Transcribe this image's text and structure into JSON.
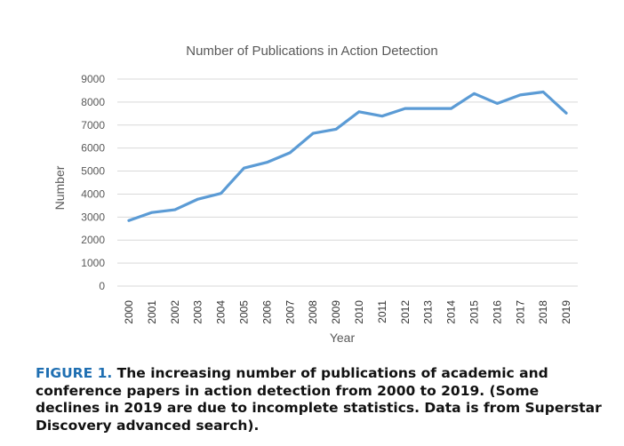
{
  "chart_data": {
    "type": "line",
    "title": "Number of Publications in Action Detection",
    "xlabel": "Year",
    "ylabel": "Number",
    "categories": [
      "2000",
      "2001",
      "2002",
      "2003",
      "2004",
      "2005",
      "2006",
      "2007",
      "2008",
      "2009",
      "2010",
      "2011",
      "2012",
      "2013",
      "2014",
      "2015",
      "2016",
      "2017",
      "2018",
      "2019"
    ],
    "series": [
      {
        "values": [
          2850,
          3200,
          3320,
          3780,
          4030,
          5130,
          5380,
          5800,
          6640,
          6820,
          7580,
          7390,
          7720,
          7720,
          7720,
          8370,
          7940,
          8310,
          8440,
          7520
        ]
      }
    ],
    "ylim": [
      0,
      9000
    ],
    "yticks": [
      0,
      1000,
      2000,
      3000,
      4000,
      5000,
      6000,
      7000,
      8000,
      9000
    ],
    "grid": true,
    "legend": "none",
    "line_color": "#5b9bd5"
  },
  "caption": {
    "label": "FIGURE 1.",
    "text": "The increasing number of publications of academic and conference papers in action detection from 2000 to 2019. (Some declines in 2019 are due to incomplete statistics. Data is from Superstar Discovery advanced search)."
  },
  "colors": {
    "caption_label": "#1f6fb2",
    "grid": "#d9d9d9",
    "text": "#595959"
  }
}
